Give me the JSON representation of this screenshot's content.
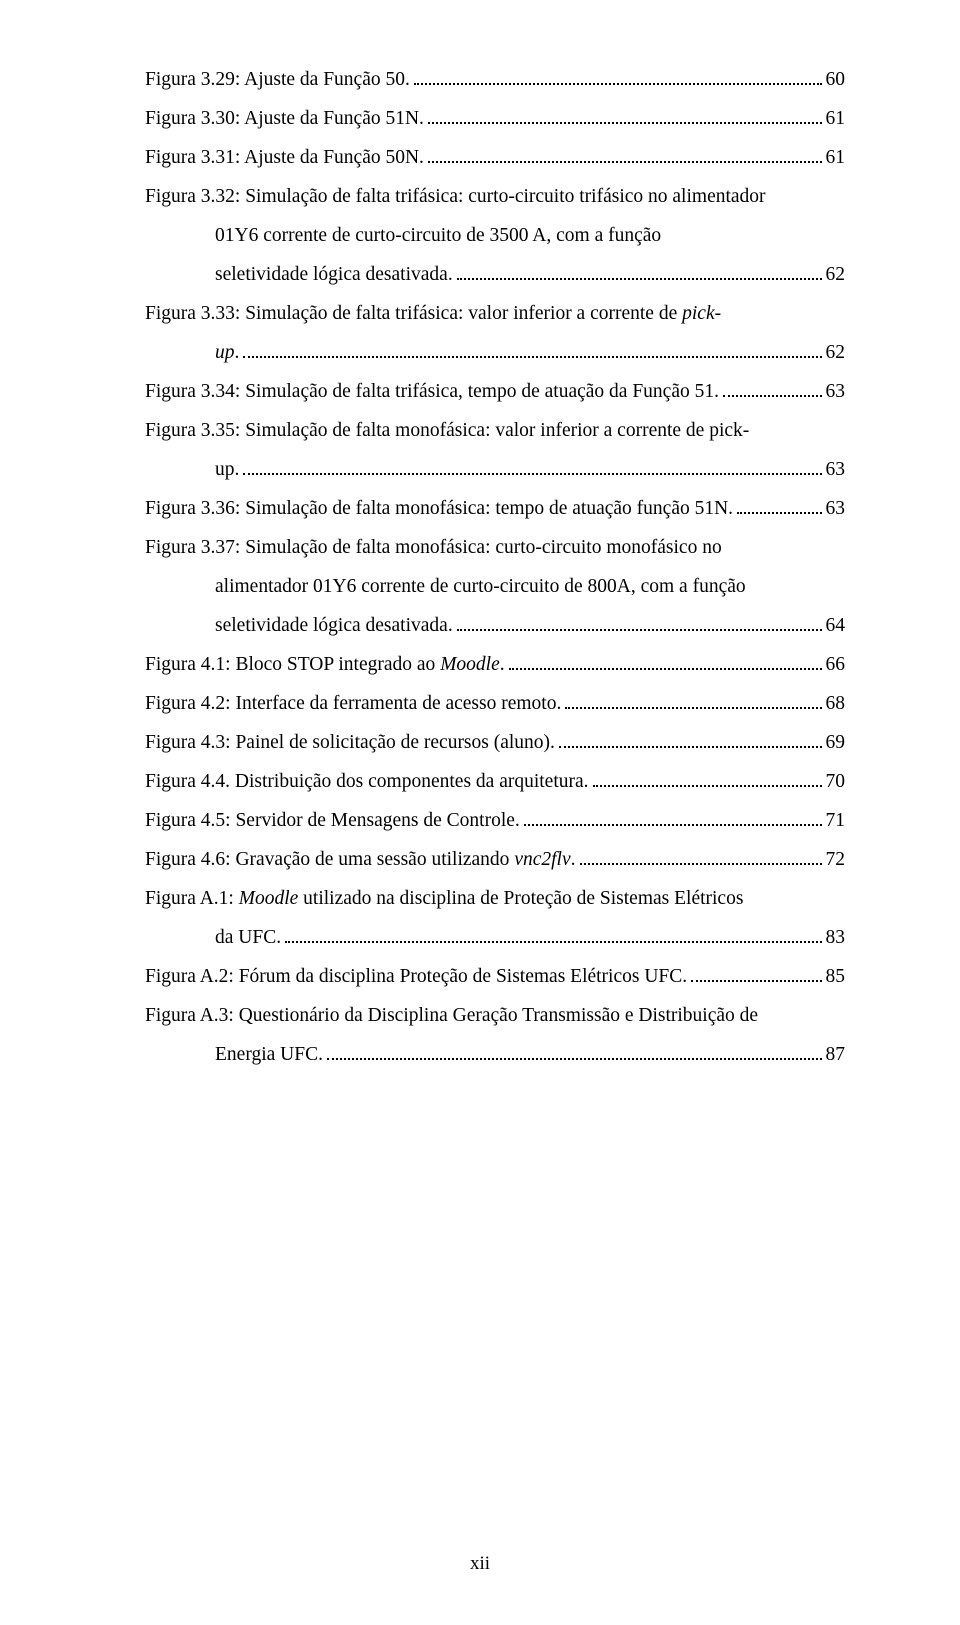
{
  "entries": [
    {
      "lines": [
        {
          "text_parts": [
            {
              "t": "Figura 3.29: Ajuste da Função 50."
            }
          ],
          "dots": true,
          "page": "60",
          "indent": 0
        }
      ]
    },
    {
      "lines": [
        {
          "text_parts": [
            {
              "t": "Figura 3.30: Ajuste da Função 51N."
            }
          ],
          "dots": true,
          "page": "61",
          "indent": 0
        }
      ]
    },
    {
      "lines": [
        {
          "text_parts": [
            {
              "t": "Figura 3.31: Ajuste da Função 50N."
            }
          ],
          "dots": true,
          "page": "61",
          "indent": 0
        }
      ]
    },
    {
      "lines": [
        {
          "text_parts": [
            {
              "t": "Figura 3.32: Simulação de falta trifásica: curto-circuito trifásico no alimentador"
            }
          ],
          "dots": false,
          "page": "",
          "indent": 0,
          "justify": true
        },
        {
          "text_parts": [
            {
              "t": "01Y6 corrente de curto-circuito de 3500 A, com a função"
            }
          ],
          "dots": false,
          "page": "",
          "indent": 1,
          "justify": true
        },
        {
          "text_parts": [
            {
              "t": "seletividade lógica desativada."
            }
          ],
          "dots": true,
          "page": "62",
          "indent": 1
        }
      ]
    },
    {
      "lines": [
        {
          "text_parts": [
            {
              "t": "Figura 3.33: Simulação de falta trifásica: valor inferior a corrente de "
            },
            {
              "t": "pick-",
              "i": true
            }
          ],
          "dots": false,
          "page": "",
          "indent": 0,
          "justify": true
        },
        {
          "text_parts": [
            {
              "t": "up",
              "i": true
            },
            {
              "t": "."
            }
          ],
          "dots": true,
          "page": "62",
          "indent": 1
        }
      ]
    },
    {
      "lines": [
        {
          "text_parts": [
            {
              "t": "Figura 3.34: Simulação de falta trifásica, tempo de atuação da Função 51."
            }
          ],
          "dots": true,
          "page": "63",
          "indent": 0,
          "tight": true
        }
      ]
    },
    {
      "lines": [
        {
          "text_parts": [
            {
              "t": "Figura 3.35: Simulação de falta monofásica: valor inferior a corrente de pick-"
            }
          ],
          "dots": false,
          "page": "",
          "indent": 0,
          "justify": true
        },
        {
          "text_parts": [
            {
              "t": "up."
            }
          ],
          "dots": true,
          "page": "63",
          "indent": 1
        }
      ]
    },
    {
      "lines": [
        {
          "text_parts": [
            {
              "t": "Figura 3.36: Simulação de falta monofásica: tempo de atuação função 51N."
            }
          ],
          "dots": true,
          "page": "63",
          "indent": 0,
          "tight": true
        }
      ]
    },
    {
      "lines": [
        {
          "text_parts": [
            {
              "t": "Figura 3.37: Simulação de falta monofásica: curto-circuito monofásico no"
            }
          ],
          "dots": false,
          "page": "",
          "indent": 0,
          "justify": true
        },
        {
          "text_parts": [
            {
              "t": "alimentador 01Y6 corrente de curto-circuito de 800A, com a função"
            }
          ],
          "dots": false,
          "page": "",
          "indent": 1,
          "justify": true
        },
        {
          "text_parts": [
            {
              "t": "seletividade lógica desativada."
            }
          ],
          "dots": true,
          "page": "64",
          "indent": 1
        }
      ]
    },
    {
      "lines": [
        {
          "text_parts": [
            {
              "t": "Figura 4.1: Bloco STOP integrado ao "
            },
            {
              "t": "Moodle",
              "i": true
            },
            {
              "t": "."
            }
          ],
          "dots": true,
          "page": "66",
          "indent": 0
        }
      ]
    },
    {
      "lines": [
        {
          "text_parts": [
            {
              "t": "Figura 4.2: Interface da ferramenta de acesso remoto."
            }
          ],
          "dots": true,
          "page": "68",
          "indent": 0
        }
      ]
    },
    {
      "lines": [
        {
          "text_parts": [
            {
              "t": "Figura 4.3: Painel de solicitação de recursos (aluno)."
            }
          ],
          "dots": true,
          "page": "69",
          "indent": 0
        }
      ]
    },
    {
      "lines": [
        {
          "text_parts": [
            {
              "t": "Figura 4.4. Distribuição dos componentes da arquitetura."
            }
          ],
          "dots": true,
          "page": "70",
          "indent": 0
        }
      ]
    },
    {
      "lines": [
        {
          "text_parts": [
            {
              "t": "Figura 4.5: Servidor de Mensagens de Controle."
            }
          ],
          "dots": true,
          "page": "71",
          "indent": 0
        }
      ]
    },
    {
      "lines": [
        {
          "text_parts": [
            {
              "t": "Figura 4.6: Gravação de uma sessão utilizando "
            },
            {
              "t": "vnc2flv",
              "i": true
            },
            {
              "t": "."
            }
          ],
          "dots": true,
          "page": "72",
          "indent": 0
        }
      ]
    },
    {
      "lines": [
        {
          "text_parts": [
            {
              "t": "Figura A.1: "
            },
            {
              "t": "Moodle",
              "i": true
            },
            {
              "t": " utilizado na disciplina de Proteção de Sistemas Elétricos"
            }
          ],
          "dots": false,
          "page": "",
          "indent": 0,
          "justify": true
        },
        {
          "text_parts": [
            {
              "t": "da UFC."
            }
          ],
          "dots": true,
          "page": "83",
          "indent": 1
        }
      ]
    },
    {
      "lines": [
        {
          "text_parts": [
            {
              "t": "Figura A.2: Fórum da disciplina Proteção de Sistemas Elétricos UFC."
            }
          ],
          "dots": true,
          "page": "85",
          "indent": 0
        }
      ]
    },
    {
      "lines": [
        {
          "text_parts": [
            {
              "t": "Figura A.3: Questionário da Disciplina Geração Transmissão e Distribuição de"
            }
          ],
          "dots": false,
          "page": "",
          "indent": 0,
          "justify": true
        },
        {
          "text_parts": [
            {
              "t": "Energia UFC."
            }
          ],
          "dots": true,
          "page": "87",
          "indent": 1
        }
      ]
    }
  ],
  "footer": "xii"
}
